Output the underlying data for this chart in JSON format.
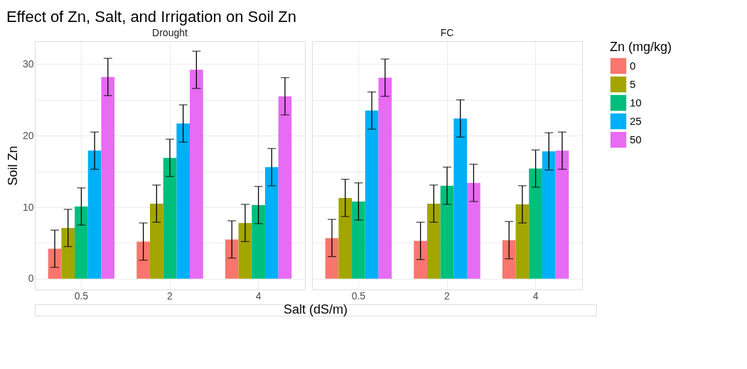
{
  "chart_data": [
    {
      "type": "bar",
      "title": "Effect of Zn, Salt, and Irrigation on Soil Zn",
      "subtitle": "Drought",
      "xlabel": "Salt (dS/m)",
      "ylabel": "Soil Zn",
      "legend_title": "Zn (mg/kg)",
      "legend": "right",
      "grid": true,
      "categories": [
        "0.5",
        "2",
        "4"
      ],
      "ylim": [
        -1.5,
        33.2
      ],
      "yticks": [
        0,
        {
          "value": 5,
          "label": null
        },
        10,
        {
          "value": 15,
          "label": null
        },
        20,
        {
          "value": 25,
          "label": null
        },
        30
      ],
      "series": [
        {
          "name": "0",
          "color": "#f8766d",
          "values": [
            4.2,
            5.2,
            5.5
          ],
          "errors": [
            2.6,
            2.6,
            2.6
          ]
        },
        {
          "name": "5",
          "color": "#a3a500",
          "values": [
            7.1,
            10.5,
            7.8
          ],
          "errors": [
            2.6,
            2.6,
            2.6
          ]
        },
        {
          "name": "10",
          "color": "#00bf7d",
          "values": [
            10.1,
            16.9,
            10.3
          ],
          "errors": [
            2.6,
            2.6,
            2.6
          ]
        },
        {
          "name": "25",
          "color": "#00b0f6",
          "values": [
            17.9,
            21.7,
            15.6
          ],
          "errors": [
            2.6,
            2.6,
            2.6
          ]
        },
        {
          "name": "50",
          "color": "#e76bf3",
          "values": [
            28.2,
            29.2,
            25.5
          ],
          "errors": [
            2.6,
            2.6,
            2.6
          ]
        }
      ]
    },
    {
      "type": "bar",
      "subtitle": "FC",
      "legend": "right",
      "grid": true,
      "tick_labels": "x",
      "categories": [
        "0.5",
        "2",
        "4"
      ],
      "ylim": [
        -1.5,
        33.2
      ],
      "yticks": [
        0,
        {
          "value": 5,
          "label": null
        },
        10,
        {
          "value": 15,
          "label": null
        },
        20,
        {
          "value": 25,
          "label": null
        },
        30
      ],
      "series": [
        {
          "name": "0",
          "color": "#f8766d",
          "values": [
            5.7,
            5.3,
            5.4
          ],
          "errors": [
            2.6,
            2.6,
            2.6
          ]
        },
        {
          "name": "5",
          "color": "#a3a500",
          "values": [
            11.3,
            10.5,
            10.4
          ],
          "errors": [
            2.6,
            2.6,
            2.6
          ]
        },
        {
          "name": "10",
          "color": "#00bf7d",
          "values": [
            10.8,
            13.0,
            15.4
          ],
          "errors": [
            2.6,
            2.6,
            2.6
          ]
        },
        {
          "name": "25",
          "color": "#00b0f6",
          "values": [
            23.5,
            22.4,
            17.8
          ],
          "errors": [
            2.6,
            2.6,
            2.6
          ]
        },
        {
          "name": "50",
          "color": "#e76bf3",
          "values": [
            28.1,
            13.4,
            17.9
          ],
          "errors": [
            2.6,
            2.6,
            2.6
          ]
        }
      ]
    }
  ]
}
